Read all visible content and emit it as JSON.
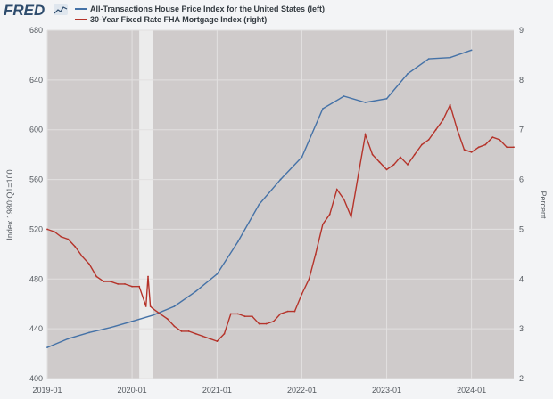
{
  "logo": {
    "text": "FRED"
  },
  "chart_data": {
    "type": "line",
    "title": "",
    "xlabel": "",
    "ylabel_left": "Index 1980:Q1=100",
    "ylabel_right": "Percent",
    "x_range": [
      "2019-01-01",
      "2024-07-01"
    ],
    "ylim_left": [
      400,
      680
    ],
    "ylim_right": [
      2,
      9
    ],
    "yticks_left": [
      400,
      440,
      480,
      520,
      560,
      600,
      640,
      680
    ],
    "yticks_right": [
      2,
      3,
      4,
      5,
      6,
      7,
      8,
      9
    ],
    "xticks": [
      {
        "label": "2019-01",
        "date": "2019-01-01"
      },
      {
        "label": "2020-01",
        "date": "2020-01-01"
      },
      {
        "label": "2021-01",
        "date": "2021-01-01"
      },
      {
        "label": "2022-01",
        "date": "2022-01-01"
      },
      {
        "label": "2023-01",
        "date": "2023-01-01"
      },
      {
        "label": "2024-01",
        "date": "2024-01-01"
      }
    ],
    "recession": {
      "start": "2020-02-01",
      "end": "2020-04-01"
    },
    "grid": true,
    "legend": "top-left",
    "series": [
      {
        "name": "All-Transactions House Price Index for the United States (left)",
        "axis": "left",
        "color": "#4572a7",
        "points": [
          [
            "2019-01-01",
            425
          ],
          [
            "2019-04-01",
            432
          ],
          [
            "2019-07-01",
            437
          ],
          [
            "2019-10-01",
            441
          ],
          [
            "2020-01-01",
            446
          ],
          [
            "2020-04-01",
            451
          ],
          [
            "2020-07-01",
            458
          ],
          [
            "2020-10-01",
            470
          ],
          [
            "2021-01-01",
            484
          ],
          [
            "2021-04-01",
            510
          ],
          [
            "2021-07-01",
            540
          ],
          [
            "2021-10-01",
            560
          ],
          [
            "2022-01-01",
            578
          ],
          [
            "2022-04-01",
            617
          ],
          [
            "2022-07-01",
            627
          ],
          [
            "2022-10-01",
            622
          ],
          [
            "2023-01-01",
            625
          ],
          [
            "2023-04-01",
            645
          ],
          [
            "2023-07-01",
            657
          ],
          [
            "2023-10-01",
            658
          ],
          [
            "2024-01-01",
            664
          ]
        ]
      },
      {
        "name": "30-Year Fixed Rate FHA Mortgage Index (right)",
        "axis": "right",
        "color": "#b5332a",
        "points": [
          [
            "2019-01-01",
            5.0
          ],
          [
            "2019-02-01",
            4.95
          ],
          [
            "2019-03-01",
            4.85
          ],
          [
            "2019-04-01",
            4.8
          ],
          [
            "2019-05-01",
            4.65
          ],
          [
            "2019-06-01",
            4.45
          ],
          [
            "2019-07-01",
            4.3
          ],
          [
            "2019-08-01",
            4.05
          ],
          [
            "2019-09-01",
            3.95
          ],
          [
            "2019-10-01",
            3.95
          ],
          [
            "2019-11-01",
            3.9
          ],
          [
            "2019-12-01",
            3.9
          ],
          [
            "2020-01-01",
            3.85
          ],
          [
            "2020-02-01",
            3.85
          ],
          [
            "2020-03-01",
            3.45
          ],
          [
            "2020-03-10",
            4.05
          ],
          [
            "2020-03-20",
            3.45
          ],
          [
            "2020-04-01",
            3.4
          ],
          [
            "2020-05-01",
            3.3
          ],
          [
            "2020-06-01",
            3.2
          ],
          [
            "2020-07-01",
            3.05
          ],
          [
            "2020-08-01",
            2.95
          ],
          [
            "2020-09-01",
            2.95
          ],
          [
            "2020-10-01",
            2.9
          ],
          [
            "2020-11-01",
            2.85
          ],
          [
            "2020-12-01",
            2.8
          ],
          [
            "2021-01-01",
            2.75
          ],
          [
            "2021-02-01",
            2.9
          ],
          [
            "2021-03-01",
            3.3
          ],
          [
            "2021-04-01",
            3.3
          ],
          [
            "2021-05-01",
            3.25
          ],
          [
            "2021-06-01",
            3.25
          ],
          [
            "2021-07-01",
            3.1
          ],
          [
            "2021-08-01",
            3.1
          ],
          [
            "2021-09-01",
            3.15
          ],
          [
            "2021-10-01",
            3.3
          ],
          [
            "2021-11-01",
            3.35
          ],
          [
            "2021-12-01",
            3.35
          ],
          [
            "2022-01-01",
            3.7
          ],
          [
            "2022-02-01",
            4.0
          ],
          [
            "2022-03-01",
            4.5
          ],
          [
            "2022-04-01",
            5.1
          ],
          [
            "2022-05-01",
            5.3
          ],
          [
            "2022-06-01",
            5.8
          ],
          [
            "2022-07-01",
            5.6
          ],
          [
            "2022-08-01",
            5.25
          ],
          [
            "2022-09-01",
            6.1
          ],
          [
            "2022-10-01",
            6.9
          ],
          [
            "2022-11-01",
            6.5
          ],
          [
            "2022-12-01",
            6.35
          ],
          [
            "2023-01-01",
            6.2
          ],
          [
            "2023-02-01",
            6.3
          ],
          [
            "2023-03-01",
            6.45
          ],
          [
            "2023-04-01",
            6.3
          ],
          [
            "2023-05-01",
            6.5
          ],
          [
            "2023-06-01",
            6.7
          ],
          [
            "2023-07-01",
            6.8
          ],
          [
            "2023-08-01",
            7.0
          ],
          [
            "2023-09-01",
            7.2
          ],
          [
            "2023-10-01",
            7.5
          ],
          [
            "2023-11-01",
            7.0
          ],
          [
            "2023-12-01",
            6.6
          ],
          [
            "2024-01-01",
            6.55
          ],
          [
            "2024-02-01",
            6.65
          ],
          [
            "2024-03-01",
            6.7
          ],
          [
            "2024-04-01",
            6.85
          ],
          [
            "2024-05-01",
            6.8
          ],
          [
            "2024-06-01",
            6.65
          ],
          [
            "2024-07-01",
            6.65
          ]
        ]
      }
    ]
  },
  "colors": {
    "plot_bg": "#cfcbcb",
    "recession_band": "#ececec",
    "grid": "#e2e0e0",
    "page_bg": "#f3f4f6"
  }
}
